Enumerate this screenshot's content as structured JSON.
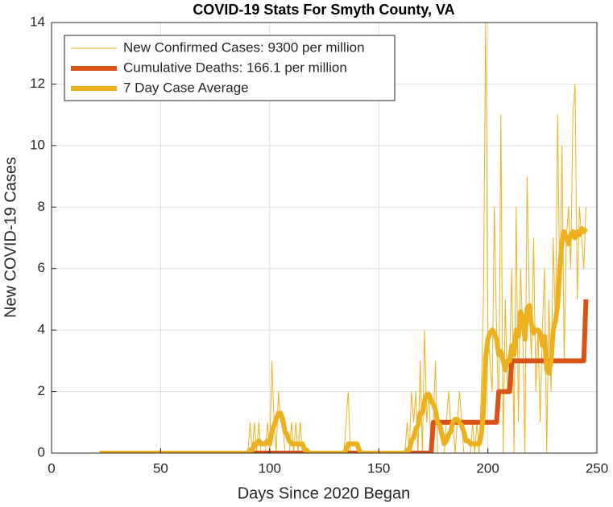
{
  "chart_data": {
    "type": "line",
    "title": "COVID-19 Stats For Smyth County, VA",
    "xlabel": "Days Since 2020 Began",
    "ylabel": "New COVID-19 Cases",
    "xlim": [
      0,
      250
    ],
    "xticks": [
      0,
      50,
      100,
      150,
      200,
      250
    ],
    "ylim": [
      0,
      14
    ],
    "yticks": [
      0,
      2,
      4,
      6,
      8,
      10,
      12,
      14
    ],
    "grid": true,
    "legend": "upper-left",
    "x": [
      22,
      23,
      24,
      25,
      26,
      27,
      28,
      29,
      30,
      31,
      32,
      33,
      34,
      35,
      36,
      37,
      38,
      39,
      40,
      41,
      42,
      43,
      44,
      45,
      46,
      47,
      48,
      49,
      50,
      51,
      52,
      53,
      54,
      55,
      56,
      57,
      58,
      59,
      60,
      61,
      62,
      63,
      64,
      65,
      66,
      67,
      68,
      69,
      70,
      71,
      72,
      73,
      74,
      75,
      76,
      77,
      78,
      79,
      80,
      81,
      82,
      83,
      84,
      85,
      86,
      87,
      88,
      89,
      90,
      91,
      92,
      93,
      94,
      95,
      96,
      97,
      98,
      99,
      100,
      101,
      102,
      103,
      104,
      105,
      106,
      107,
      108,
      109,
      110,
      111,
      112,
      113,
      114,
      115,
      116,
      117,
      118,
      119,
      120,
      121,
      122,
      123,
      124,
      125,
      126,
      127,
      128,
      129,
      130,
      131,
      132,
      133,
      134,
      135,
      136,
      137,
      138,
      139,
      140,
      141,
      142,
      143,
      144,
      145,
      146,
      147,
      148,
      149,
      150,
      151,
      152,
      153,
      154,
      155,
      156,
      157,
      158,
      159,
      160,
      161,
      162,
      163,
      164,
      165,
      166,
      167,
      168,
      169,
      170,
      171,
      172,
      173,
      174,
      175,
      176,
      177,
      178,
      179,
      180,
      181,
      182,
      183,
      184,
      185,
      186,
      187,
      188,
      189,
      190,
      191,
      192,
      193,
      194,
      195,
      196,
      197,
      198,
      199,
      200,
      201,
      202,
      203,
      204,
      205,
      206,
      207,
      208,
      209,
      210,
      211,
      212,
      213,
      214,
      215,
      216,
      217,
      218,
      219,
      220,
      221,
      222,
      223,
      224,
      225,
      226,
      227,
      228,
      229,
      230,
      231,
      232,
      233,
      234,
      235,
      236,
      237,
      238,
      239,
      240,
      241,
      242,
      243,
      244,
      245
    ],
    "series": [
      {
        "name": "New Confirmed Cases: 9300 per million",
        "color": "#EDB120",
        "width": 1,
        "values": [
          0,
          0,
          0,
          0,
          0,
          0,
          0,
          0,
          0,
          0,
          0,
          0,
          0,
          0,
          0,
          0,
          0,
          0,
          0,
          0,
          0,
          0,
          0,
          0,
          0,
          0,
          0,
          0,
          0,
          0,
          0,
          0,
          0,
          0,
          0,
          0,
          0,
          0,
          0,
          0,
          0,
          0,
          0,
          0,
          0,
          0,
          0,
          0,
          0,
          0,
          0,
          0,
          0,
          0,
          0,
          0,
          0,
          0,
          0,
          0,
          0,
          0,
          0,
          0,
          0,
          0,
          0,
          0,
          0,
          1,
          0,
          1,
          0,
          1,
          0,
          0,
          0,
          1,
          0,
          3,
          1,
          0,
          2,
          1,
          1,
          0,
          0,
          0,
          1,
          0,
          1,
          0,
          1,
          0,
          0,
          0,
          0,
          0,
          0,
          0,
          0,
          0,
          0,
          0,
          0,
          0,
          0,
          0,
          0,
          0,
          0,
          0,
          0,
          1,
          2,
          0,
          0,
          0,
          0,
          0,
          0,
          0,
          0,
          0,
          0,
          0,
          0,
          0,
          0,
          0,
          0,
          0,
          0,
          0,
          0,
          0,
          0,
          0,
          0,
          0,
          0,
          1,
          0,
          2,
          1,
          2,
          0,
          3,
          0,
          4,
          1,
          2,
          0,
          1,
          3,
          0,
          0,
          0,
          0,
          1,
          2,
          1,
          1,
          0,
          1,
          2,
          1,
          0,
          0,
          0,
          0,
          1,
          0,
          1,
          0,
          2,
          5,
          14,
          4,
          3,
          2,
          8,
          4,
          1,
          11,
          0,
          5,
          2,
          3,
          6,
          0,
          8,
          1,
          6,
          4,
          0,
          9,
          5,
          3,
          7,
          2,
          4,
          1,
          4,
          6,
          0,
          5,
          2,
          7,
          4,
          11,
          5,
          10,
          3,
          7,
          8,
          6,
          11,
          12,
          5,
          8,
          7,
          6,
          8
        ]
      },
      {
        "name": "Cumulative Deaths: 166.1 per million",
        "color": "#D95319",
        "width": 6,
        "values": [
          0,
          0,
          0,
          0,
          0,
          0,
          0,
          0,
          0,
          0,
          0,
          0,
          0,
          0,
          0,
          0,
          0,
          0,
          0,
          0,
          0,
          0,
          0,
          0,
          0,
          0,
          0,
          0,
          0,
          0,
          0,
          0,
          0,
          0,
          0,
          0,
          0,
          0,
          0,
          0,
          0,
          0,
          0,
          0,
          0,
          0,
          0,
          0,
          0,
          0,
          0,
          0,
          0,
          0,
          0,
          0,
          0,
          0,
          0,
          0,
          0,
          0,
          0,
          0,
          0,
          0,
          0,
          0,
          0,
          0,
          0,
          0,
          0,
          0,
          0,
          0,
          0,
          0,
          0,
          0,
          0,
          0,
          0,
          0,
          0,
          0,
          0,
          0,
          0,
          0,
          0,
          0,
          0,
          0,
          0,
          0,
          0,
          0,
          0,
          0,
          0,
          0,
          0,
          0,
          0,
          0,
          0,
          0,
          0,
          0,
          0,
          0,
          0,
          0,
          0,
          0,
          0,
          0,
          0,
          0,
          0,
          0,
          0,
          0,
          0,
          0,
          0,
          0,
          0,
          0,
          0,
          0,
          0,
          0,
          0,
          0,
          0,
          0,
          0,
          0,
          0,
          0,
          0,
          0,
          0,
          0,
          0,
          0,
          0,
          0,
          0,
          0,
          0,
          1,
          1,
          1,
          1,
          1,
          1,
          1,
          1,
          1,
          1,
          1,
          1,
          1,
          1,
          1,
          1,
          1,
          1,
          1,
          1,
          1,
          1,
          1,
          1,
          1,
          1,
          1,
          1,
          1,
          1,
          2,
          2,
          2,
          2,
          2,
          2,
          3,
          3,
          3,
          3,
          3,
          3,
          3,
          3,
          3,
          3,
          3,
          3,
          3,
          3,
          3,
          3,
          3,
          3,
          3,
          3,
          3,
          3,
          3,
          3,
          3,
          3,
          3,
          3,
          3,
          3,
          3,
          3,
          3,
          3,
          5
        ]
      },
      {
        "name": "7 Day Case Average",
        "color": "#EDB120",
        "width": 6,
        "values": [
          0,
          0,
          0,
          0,
          0,
          0,
          0,
          0,
          0,
          0,
          0,
          0,
          0,
          0,
          0,
          0,
          0,
          0,
          0,
          0,
          0,
          0,
          0,
          0,
          0,
          0,
          0,
          0,
          0,
          0,
          0,
          0,
          0,
          0,
          0,
          0,
          0,
          0,
          0,
          0,
          0,
          0,
          0,
          0,
          0,
          0,
          0,
          0,
          0,
          0,
          0,
          0,
          0,
          0,
          0,
          0,
          0,
          0,
          0,
          0,
          0,
          0,
          0,
          0,
          0,
          0,
          0,
          0,
          0,
          0.1,
          0.1,
          0.3,
          0.3,
          0.4,
          0.3,
          0.3,
          0.3,
          0.4,
          0.3,
          0.7,
          0.9,
          1.1,
          1.3,
          1.3,
          1.1,
          0.7,
          0.6,
          0.4,
          0.3,
          0.3,
          0.3,
          0.3,
          0.3,
          0.3,
          0.1,
          0.1,
          0,
          0,
          0,
          0,
          0,
          0,
          0,
          0,
          0,
          0,
          0,
          0,
          0,
          0,
          0,
          0,
          0,
          0.1,
          0.3,
          0.3,
          0.3,
          0.3,
          0.3,
          0.1,
          0,
          0,
          0,
          0,
          0,
          0,
          0,
          0,
          0,
          0,
          0,
          0,
          0,
          0,
          0,
          0,
          0,
          0,
          0,
          0,
          0,
          0.1,
          0.1,
          0.4,
          0.5,
          0.8,
          0.9,
          1.3,
          1.3,
          1.7,
          1.9,
          1.9,
          1.7,
          1.6,
          1.4,
          1.0,
          0.9,
          0.6,
          0.3,
          0.4,
          0.6,
          0.7,
          1.0,
          1.1,
          1.1,
          1.0,
          0.9,
          0.7,
          0.4,
          0.4,
          0.3,
          0.3,
          0.3,
          0.3,
          0.3,
          0.6,
          1.3,
          3.1,
          3.7,
          3.9,
          4.0,
          3.9,
          3.7,
          3.2,
          3.3,
          3.0,
          2.7,
          3.0,
          3.0,
          3.5,
          3.2,
          4.0,
          3.8,
          4.6,
          4.4,
          3.7,
          4.7,
          4.8,
          4.2,
          3.9,
          4.0,
          4.0,
          3.9,
          3.5,
          3.8,
          2.7,
          2.6,
          3.0,
          4.0,
          4.3,
          4.8,
          6.0,
          6.9,
          7.2,
          7.0,
          6.8,
          7.1,
          7.2,
          7.0,
          7.2,
          7.1,
          7.3,
          7.2,
          7.3
        ]
      }
    ]
  }
}
